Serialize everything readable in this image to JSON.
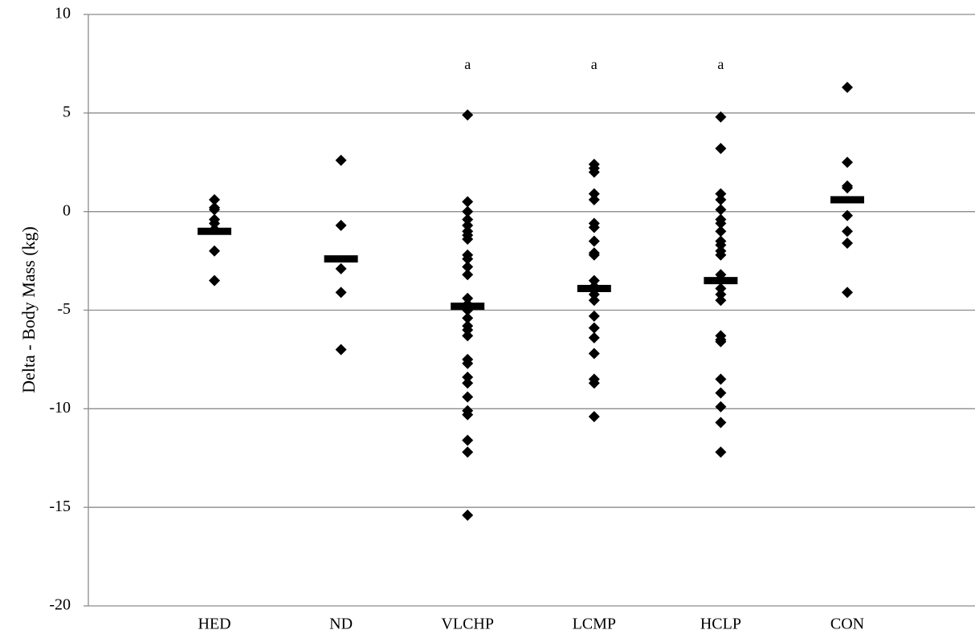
{
  "chart_data": {
    "type": "strip",
    "y_label": "Delta - Body Mass (kg)",
    "categories": [
      "HED",
      "ND",
      "VLCHP",
      "LCMP",
      "HCLP",
      "CON"
    ],
    "values": [
      [
        0.6,
        0.2,
        0.1,
        -0.4,
        -0.6,
        -0.9,
        -2.0,
        -3.5
      ],
      [
        2.6,
        -0.7,
        -2.9,
        -4.1,
        -7.0
      ],
      [
        4.9,
        0.5,
        0.0,
        -0.4,
        -0.7,
        -1.0,
        -1.2,
        -1.4,
        -2.2,
        -2.4,
        -2.8,
        -3.2,
        -4.4,
        -4.7,
        -5.0,
        -5.4,
        -5.8,
        -6.0,
        -6.3,
        -7.5,
        -7.7,
        -8.4,
        -8.7,
        -9.4,
        -10.1,
        -10.3,
        -11.6,
        -12.2,
        -15.4
      ],
      [
        2.4,
        2.2,
        2.0,
        0.9,
        0.6,
        -0.6,
        -0.8,
        -1.5,
        -2.1,
        -2.2,
        -3.5,
        -3.8,
        -4.2,
        -4.5,
        -5.3,
        -5.9,
        -6.4,
        -7.2,
        -8.5,
        -8.7,
        -10.4
      ],
      [
        4.8,
        3.2,
        0.9,
        0.6,
        0.1,
        -0.4,
        -0.6,
        -1.0,
        -1.5,
        -1.7,
        -2.0,
        -2.2,
        -3.2,
        -3.4,
        -3.9,
        -4.2,
        -4.5,
        -6.3,
        -6.5,
        -6.6,
        -8.5,
        -9.2,
        -9.9,
        -10.7,
        -12.2
      ],
      [
        6.3,
        2.5,
        1.3,
        1.2,
        -0.2,
        -1.0,
        -1.6,
        -4.1
      ]
    ],
    "means": [
      -1.0,
      -2.4,
      -4.8,
      -3.9,
      -3.5,
      0.6
    ],
    "annotations": [
      null,
      null,
      "a",
      "a",
      "a",
      null
    ],
    "color": "#000000",
    "ylim": [
      -20,
      10
    ],
    "yticks": [
      -20,
      -15,
      -10,
      -5,
      0,
      5,
      10
    ],
    "grid": true
  }
}
